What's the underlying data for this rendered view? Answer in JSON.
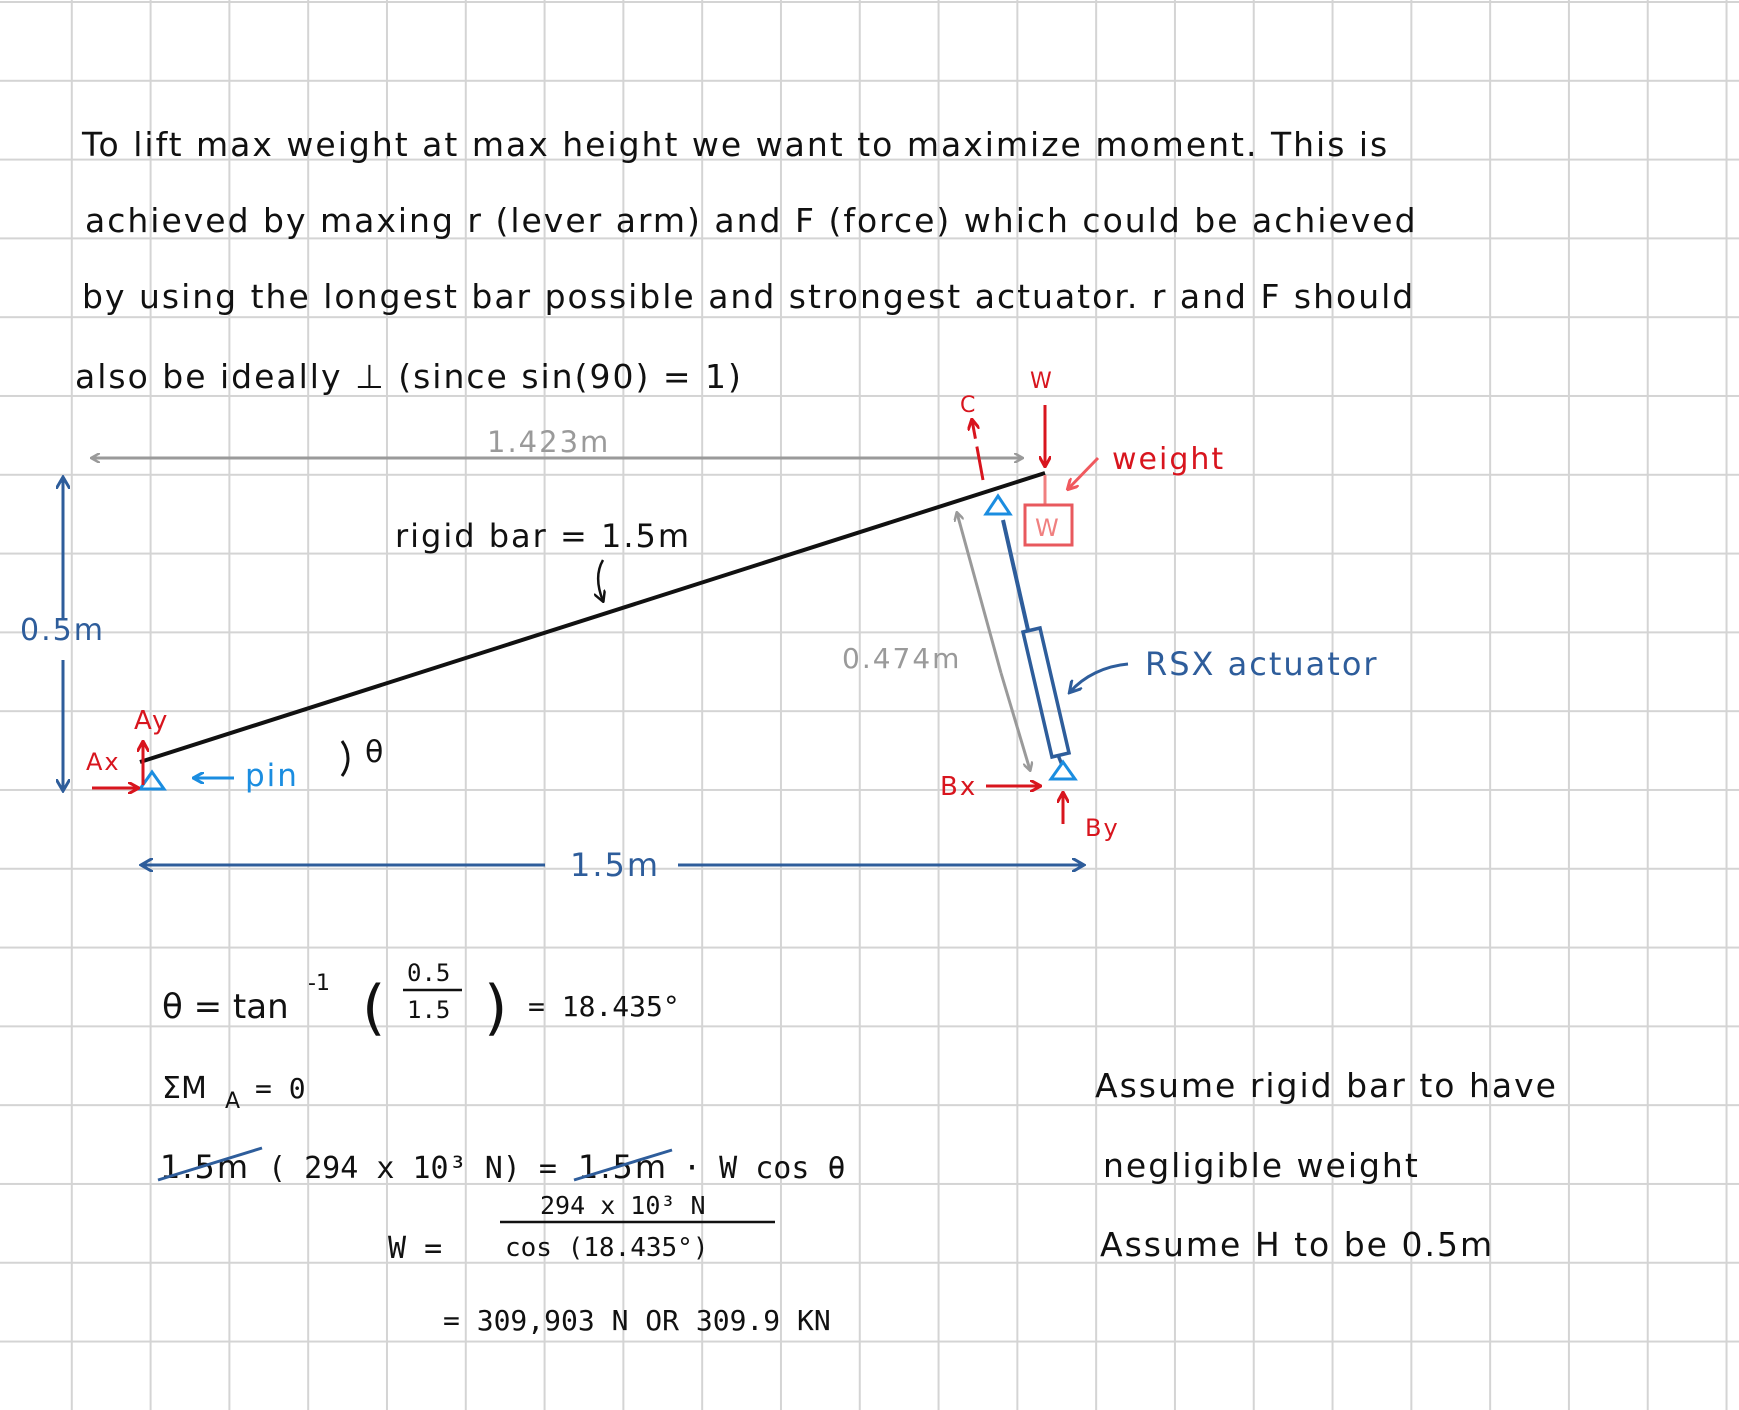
{
  "paragraph": {
    "line1": "To lift max weight at max height we want to maximize moment. This is",
    "line2": "achieved by maxing r (lever arm) and F (force) which could be achieved",
    "line3": "by using the longest bar possible and strongest actuator. r and F should",
    "line4": "also be ideally ⊥ (since sin(90) = 1)"
  },
  "diagram": {
    "top_dim_label": "1.423m",
    "left_dim_label": "0.5m",
    "bottom_dim_label": "1.5m",
    "bar_label": "rigid bar = 1.5m",
    "angle_label": "θ",
    "pin_label": "pin",
    "ax_label": "Ax",
    "ay_label": "Ay",
    "bx_label": "Bx",
    "by_label": "By",
    "c_label": "C",
    "w_force_label": "W",
    "weight_label": "weight",
    "weight_box_label": "W",
    "actuator_dim_label": "0.474m",
    "actuator_label": "RSX actuator",
    "colors": {
      "black": "#111111",
      "red": "#d8151e",
      "blue": "#2e5d9b",
      "bright_blue": "#1b8de0",
      "gray": "#9a9a9a",
      "pink": "#f08080"
    }
  },
  "equations": {
    "theta_lhs": "θ = tan",
    "theta_exp": "-1",
    "theta_num": "0.5",
    "theta_den": "1.5",
    "theta_result": "= 18.435°",
    "sum_m": "ΣM",
    "sum_sub": "A",
    "sum_eq": "= 0",
    "moment_left_struck": "1.5m",
    "moment_left_rest": "( 294 x 10³ N) =",
    "moment_right_struck": "1.5m",
    "moment_right_rest": "· W cos θ",
    "w_lhs": "W =",
    "w_num": "294 x 10³ N",
    "w_den": "cos (18.435°)",
    "w_result": "= 309,903 N  OR  309.9 KN"
  },
  "assumptions": {
    "line1": "Assume rigid bar to have",
    "line2": "negligible weight",
    "line3": "Assume H to be 0.5m"
  }
}
